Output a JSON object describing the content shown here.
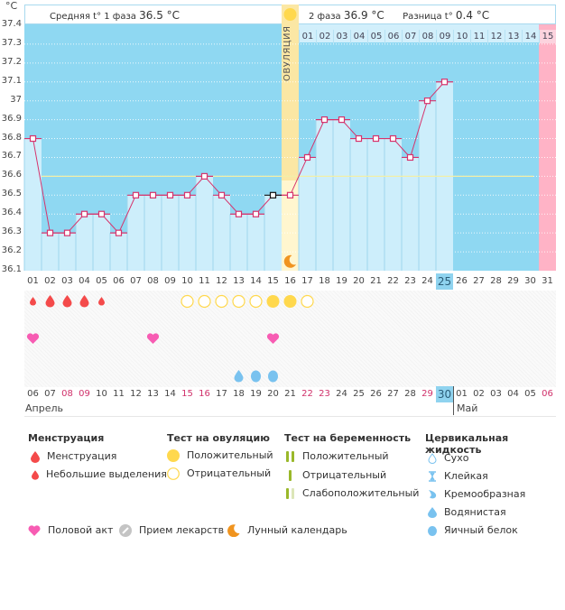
{
  "header": {
    "unit": "°C",
    "phase1_label": "Средняя t° 1 фаза",
    "phase1_value": "36.5 °C",
    "phase2_label": "2 фаза",
    "phase2_value": "36.9 °C",
    "diff_label": "Разница t°",
    "diff_value": "0.4 °C",
    "ovulation_label": "ОВУЛЯЦИЯ"
  },
  "chart_data": {
    "type": "line",
    "title": "",
    "xlabel": "",
    "ylabel": "°C",
    "ylim": [
      36.1,
      37.4
    ],
    "yticks": [
      "37.4",
      "37.3",
      "37.2",
      "37.1",
      "37",
      "36.9",
      "36.8",
      "36.7",
      "36.6",
      "36.5",
      "36.4",
      "36.3",
      "36.2",
      "36.1"
    ],
    "x": [
      "01",
      "02",
      "03",
      "04",
      "05",
      "06",
      "07",
      "08",
      "09",
      "10",
      "11",
      "12",
      "13",
      "14",
      "15",
      "16",
      "17",
      "18",
      "19",
      "20",
      "21",
      "22",
      "23",
      "24",
      "25",
      "26",
      "27",
      "28",
      "29",
      "30",
      "31"
    ],
    "series": [
      {
        "name": "Базальная температура",
        "values": [
          36.8,
          36.3,
          36.3,
          36.4,
          36.4,
          36.3,
          36.5,
          36.5,
          36.5,
          36.5,
          36.6,
          36.5,
          36.4,
          36.4,
          36.5,
          36.5,
          36.7,
          36.9,
          36.9,
          36.8,
          36.8,
          36.8,
          36.7,
          37.0,
          37.1,
          null,
          null,
          null,
          null,
          null,
          null
        ]
      }
    ],
    "coverline": 36.6,
    "ovulation_day": "16",
    "current_day": "25",
    "next_period_day": "31",
    "phase2_day_numbers": [
      "01",
      "02",
      "03",
      "04",
      "05",
      "06",
      "07",
      "08",
      "09",
      "10",
      "11",
      "12",
      "13",
      "14",
      "15"
    ],
    "grid": true,
    "legend": "none"
  },
  "calendar": {
    "dates": [
      {
        "d": "06",
        "we": false
      },
      {
        "d": "07",
        "we": false
      },
      {
        "d": "08",
        "we": true
      },
      {
        "d": "09",
        "we": true
      },
      {
        "d": "10",
        "we": false
      },
      {
        "d": "11",
        "we": false
      },
      {
        "d": "12",
        "we": false
      },
      {
        "d": "13",
        "we": false
      },
      {
        "d": "14",
        "we": false
      },
      {
        "d": "15",
        "we": true
      },
      {
        "d": "16",
        "we": true
      },
      {
        "d": "17",
        "we": false
      },
      {
        "d": "18",
        "we": false
      },
      {
        "d": "19",
        "we": false
      },
      {
        "d": "20",
        "we": false
      },
      {
        "d": "21",
        "we": false
      },
      {
        "d": "22",
        "we": true
      },
      {
        "d": "23",
        "we": true
      },
      {
        "d": "24",
        "we": false
      },
      {
        "d": "25",
        "we": false
      },
      {
        "d": "26",
        "we": false
      },
      {
        "d": "27",
        "we": false
      },
      {
        "d": "28",
        "we": false
      },
      {
        "d": "29",
        "we": true
      },
      {
        "d": "30",
        "we": true,
        "today": true
      },
      {
        "d": "01",
        "we": false
      },
      {
        "d": "02",
        "we": false
      },
      {
        "d": "03",
        "we": false
      },
      {
        "d": "04",
        "we": false
      },
      {
        "d": "05",
        "we": false
      },
      {
        "d": "06",
        "we": true
      }
    ],
    "month1": "Апрель",
    "month2": "Май",
    "menstruation": [
      "small",
      "big",
      "big",
      "big",
      "small",
      null,
      null,
      null,
      null,
      null,
      null,
      null,
      null,
      null,
      null,
      null,
      null,
      null,
      null,
      null,
      null,
      null,
      null,
      null,
      null,
      null,
      null,
      null,
      null,
      null,
      null
    ],
    "ovulation_tests": [
      null,
      null,
      null,
      null,
      null,
      null,
      null,
      null,
      null,
      "neg",
      "neg",
      "neg",
      "neg",
      "neg",
      "pos",
      "pos",
      "neg",
      null,
      null,
      null,
      null,
      null,
      null,
      null,
      null,
      null,
      null,
      null,
      null,
      null,
      null
    ],
    "intercourse": [
      true,
      false,
      false,
      false,
      false,
      false,
      false,
      true,
      false,
      false,
      false,
      false,
      false,
      false,
      true,
      false,
      false,
      false,
      false,
      false,
      false,
      false,
      false,
      false,
      false,
      false,
      false,
      false,
      false,
      false,
      false
    ],
    "cervical_fluid": [
      null,
      null,
      null,
      null,
      null,
      null,
      null,
      null,
      null,
      null,
      null,
      null,
      "watery",
      "eggwhite",
      "eggwhite",
      null,
      null,
      null,
      null,
      null,
      null,
      null,
      null,
      null,
      null,
      null,
      null,
      null,
      null,
      null,
      null
    ]
  },
  "legend": {
    "menstruation": {
      "title": "Менструация",
      "items": [
        "Менструация",
        "Небольшие выделения"
      ]
    },
    "ovulation_test": {
      "title": "Тест на овуляцию",
      "items": [
        "Положительный",
        "Отрицательный"
      ]
    },
    "pregnancy_test": {
      "title": "Тест на беременность",
      "items": [
        "Положительный",
        "Отрицательный",
        "Слабоположительный"
      ]
    },
    "cervical_fluid": {
      "title": "Цервикальная жидкость",
      "items": [
        "Сухо",
        "Клейкая",
        "Кремообразная",
        "Водянистая",
        "Яичный белок"
      ]
    },
    "other": [
      "Половой акт",
      "Прием лекарств",
      "Лунный календарь"
    ]
  },
  "colors": {
    "plot_bg": "#8fd8f2",
    "bar_fill": "#cdeefb",
    "line": "#d6336c",
    "coverline": "#f2efa8",
    "ovulation_band": "#fbe7a4",
    "period_col": "#ffb3c6",
    "menstruation": "#f44a4a",
    "ovulation_test": "#ffd84d",
    "heart": "#f75cb3",
    "fluid": "#79c2ef",
    "moon": "#f0941f",
    "pregnancy": "#9ab82a"
  }
}
